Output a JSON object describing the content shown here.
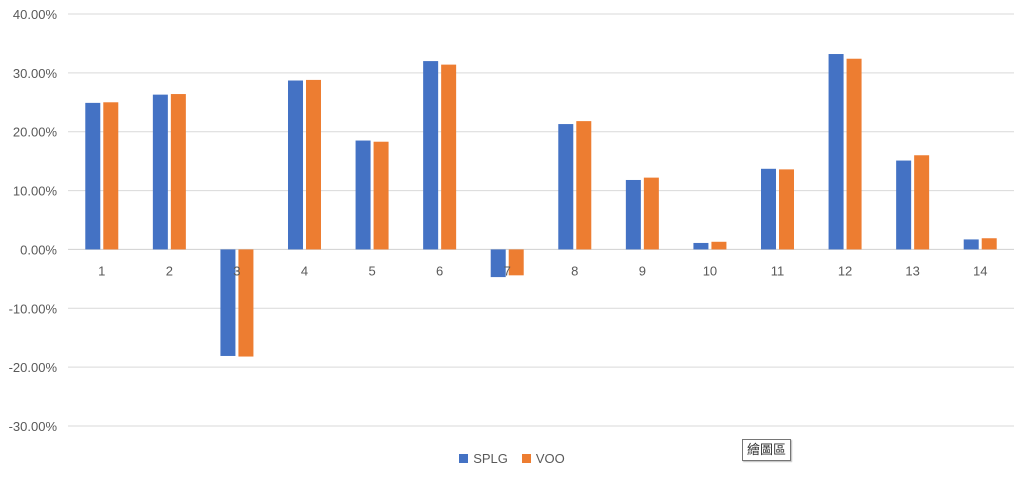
{
  "chart_data": {
    "type": "bar",
    "categories": [
      "1",
      "2",
      "3",
      "4",
      "5",
      "6",
      "7",
      "8",
      "9",
      "10",
      "11",
      "12",
      "13",
      "14"
    ],
    "series": [
      {
        "name": "SPLG",
        "color": "#4472C4",
        "values": [
          24.9,
          26.3,
          -18.1,
          28.7,
          18.5,
          32.0,
          -4.7,
          21.3,
          11.8,
          1.1,
          13.7,
          33.2,
          15.1,
          1.7
        ]
      },
      {
        "name": "VOO",
        "color": "#ED7D31",
        "values": [
          25.0,
          26.4,
          -18.2,
          28.8,
          18.3,
          31.4,
          -4.4,
          21.8,
          12.2,
          1.3,
          13.6,
          32.4,
          16.0,
          1.9
        ]
      }
    ],
    "ylim": [
      -30,
      40
    ],
    "ytick_step": 10,
    "ytick_labels": [
      "-30.00%",
      "-20.00%",
      "-10.00%",
      "0.00%",
      "10.00%",
      "20.00%",
      "30.00%",
      "40.00%"
    ],
    "grid": true,
    "legend_position": "bottom"
  },
  "tooltip": {
    "text": "繪圖區"
  }
}
